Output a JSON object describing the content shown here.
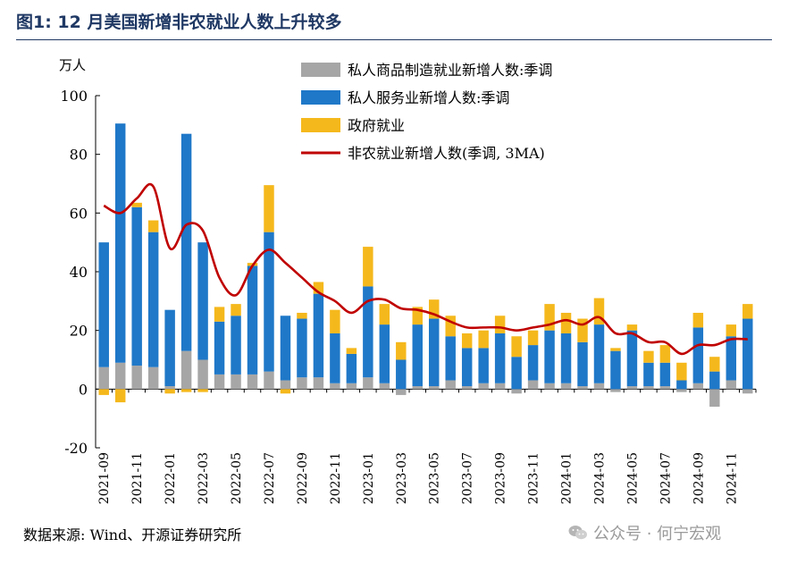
{
  "page": {
    "figure_title": "图1:  12 月美国新增非农就业人数上升较多",
    "source": "数据来源:  Wind、开源证券研究所",
    "watermark": "公众号 · 何宁宏观"
  },
  "colors": {
    "manufacturing": "#a6a6a6",
    "services": "#1f78c8",
    "government": "#f5b81c",
    "line": "#c00000",
    "title": "#1f3864"
  },
  "chart_data": {
    "type": "bar",
    "stacked": true,
    "y_unit_label": "万人",
    "ylim": [
      -20,
      100
    ],
    "yticks": [
      -20,
      0,
      20,
      40,
      60,
      80,
      100
    ],
    "grid": false,
    "legend_position": "top-center",
    "categories": [
      "2021-09",
      "2021-10",
      "2021-11",
      "2021-12",
      "2022-01",
      "2022-02",
      "2022-03",
      "2022-04",
      "2022-05",
      "2022-06",
      "2022-07",
      "2022-08",
      "2022-09",
      "2022-10",
      "2022-11",
      "2022-12",
      "2023-01",
      "2023-02",
      "2023-03",
      "2023-04",
      "2023-05",
      "2023-06",
      "2023-07",
      "2023-08",
      "2023-09",
      "2023-10",
      "2023-11",
      "2023-12",
      "2024-01",
      "2024-02",
      "2024-03",
      "2024-04",
      "2024-05",
      "2024-06",
      "2024-07",
      "2024-08",
      "2024-09",
      "2024-10",
      "2024-11",
      "2024-12"
    ],
    "x_tick_labels": [
      "2021-09",
      "2021-11",
      "2022-01",
      "2022-03",
      "2022-05",
      "2022-07",
      "2022-09",
      "2022-11",
      "2023-01",
      "2023-03",
      "2023-05",
      "2023-07",
      "2023-09",
      "2023-11",
      "2024-01",
      "2024-03",
      "2024-05",
      "2024-07",
      "2024-09",
      "2024-11"
    ],
    "series": [
      {
        "name": "私人商品制造就业新增人数:季调",
        "kind": "bar",
        "color_key": "manufacturing",
        "values": [
          7.5,
          9,
          8,
          7.5,
          1,
          13,
          10,
          5,
          5,
          5,
          6,
          3,
          4,
          4,
          2,
          2,
          4,
          2,
          -2,
          1,
          1,
          3,
          1,
          2,
          2,
          -1.5,
          3,
          2,
          2,
          1,
          2,
          -1,
          1,
          1,
          1,
          -1,
          2,
          -6,
          3,
          -1.5
        ]
      },
      {
        "name": "私人服务业新增人数:季调",
        "kind": "bar",
        "color_key": "services",
        "values": [
          42.5,
          81.5,
          54,
          46,
          26,
          74,
          40,
          18,
          20,
          37,
          47.5,
          22,
          20,
          28.5,
          17,
          10,
          31,
          20,
          10,
          21,
          23,
          15,
          13,
          12,
          17,
          11,
          12,
          18,
          17,
          15,
          20,
          13,
          19,
          8,
          8,
          3,
          19,
          6,
          15,
          24
        ]
      },
      {
        "name": "政府就业",
        "kind": "bar",
        "color_key": "government",
        "values": [
          -2,
          -4.5,
          1.5,
          4,
          -1.5,
          -1,
          -1,
          5,
          4,
          1,
          16,
          -1.5,
          2,
          4,
          8,
          2,
          13.5,
          7,
          6,
          6,
          6.5,
          7,
          5,
          6,
          6,
          7,
          5,
          9,
          7,
          8,
          9,
          1,
          2,
          4,
          6,
          6,
          5,
          5,
          4,
          5
        ]
      },
      {
        "name": "非农就业新增人数(季调, 3MA)",
        "kind": "line",
        "color_key": "line",
        "values": [
          62.5,
          60,
          65,
          69,
          48,
          56,
          54,
          38,
          32,
          42,
          47.5,
          43,
          38,
          33,
          30,
          26,
          30,
          30.5,
          27.5,
          27,
          25.5,
          23,
          21,
          21,
          21,
          20,
          21,
          22,
          23.5,
          22,
          24.5,
          19,
          19,
          16,
          16,
          12,
          15,
          15,
          17,
          17
        ]
      }
    ]
  }
}
